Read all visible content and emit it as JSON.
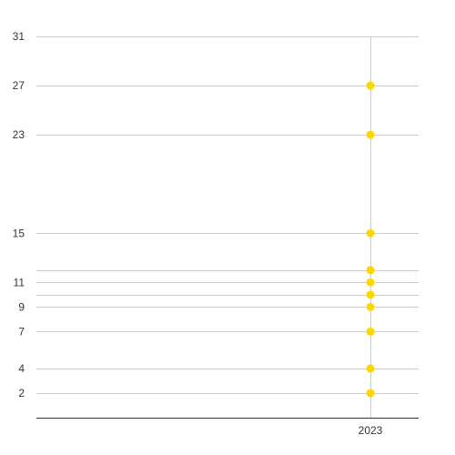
{
  "chart_data": {
    "type": "scatter",
    "x_categories": [
      "2023"
    ],
    "x_tick_labels": [
      "2023"
    ],
    "y_tick_labels": [
      "2",
      "4",
      "7",
      "9",
      "11",
      "15",
      "23",
      "27",
      "31"
    ],
    "y_gridlines": [
      2,
      4,
      7,
      9,
      10,
      11,
      12,
      15,
      23,
      27,
      31
    ],
    "ylim": [
      0,
      31
    ],
    "grid": true,
    "series": [
      {
        "color": "#FFD700",
        "points": [
          {
            "x": "2023",
            "y": 2
          },
          {
            "x": "2023",
            "y": 4
          },
          {
            "x": "2023",
            "y": 7
          },
          {
            "x": "2023",
            "y": 9
          },
          {
            "x": "2023",
            "y": 10
          },
          {
            "x": "2023",
            "y": 11
          },
          {
            "x": "2023",
            "y": 12
          },
          {
            "x": "2023",
            "y": 15
          },
          {
            "x": "2023",
            "y": 23
          },
          {
            "x": "2023",
            "y": 27
          }
        ]
      }
    ]
  }
}
